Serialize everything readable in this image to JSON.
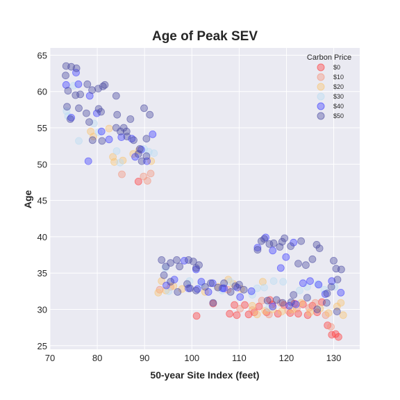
{
  "chart_data": {
    "type": "scatter",
    "title": "Age of Peak SEV",
    "xlabel": "50-year Site Index (feet)",
    "ylabel": "Age",
    "xlim": [
      70,
      135.5
    ],
    "ylim": [
      24.5,
      66
    ],
    "xticks": [
      70,
      80,
      90,
      100,
      110,
      120,
      130
    ],
    "yticks": [
      25,
      30,
      35,
      40,
      45,
      50,
      55,
      60,
      65
    ],
    "grid": true,
    "background": "#eaeaf2",
    "legend": {
      "title": "Carbon Price",
      "placement": "top-right"
    },
    "series": [
      {
        "name": "$0",
        "color": "#ff3b3b",
        "points": [
          [
            88.7,
            47.6
          ],
          [
            101.0,
            29.1
          ],
          [
            104.5,
            30.8
          ],
          [
            108.0,
            29.4
          ],
          [
            109.0,
            30.6
          ],
          [
            109.5,
            29.2
          ],
          [
            111.2,
            30.6
          ],
          [
            112.0,
            29.3
          ],
          [
            114.2,
            30.4
          ],
          [
            115.8,
            29.6
          ],
          [
            117.0,
            30.7
          ],
          [
            118.2,
            29.4
          ],
          [
            119.5,
            30.6
          ],
          [
            120.8,
            29.5
          ],
          [
            121.7,
            30.8
          ],
          [
            122.5,
            29.4
          ],
          [
            123.5,
            30.7
          ],
          [
            124.5,
            29.2
          ],
          [
            125.5,
            30.5
          ],
          [
            126.5,
            29.6
          ],
          [
            127.5,
            31.0
          ],
          [
            128.7,
            27.8
          ],
          [
            129.6,
            26.5
          ],
          [
            130.4,
            26.6
          ],
          [
            131.0,
            26.2
          ],
          [
            116.5,
            31.3
          ],
          [
            113.2,
            29.6
          ]
        ]
      },
      {
        "name": "$10",
        "color": "#f4937a",
        "points": [
          [
            85.2,
            48.6
          ],
          [
            89.8,
            48.3
          ],
          [
            91.3,
            48.7
          ],
          [
            90.6,
            47.7
          ],
          [
            93.2,
            32.7
          ],
          [
            95.5,
            33.1
          ],
          [
            107.6,
            32.7
          ],
          [
            110.2,
            30.1
          ],
          [
            112.8,
            29.9
          ],
          [
            114.8,
            31.2
          ],
          [
            116.3,
            29.3
          ],
          [
            118.8,
            30.9
          ],
          [
            120.4,
            29.8
          ],
          [
            122.2,
            30.1
          ],
          [
            124.8,
            30.2
          ],
          [
            126.1,
            30.9
          ],
          [
            128.3,
            29.2
          ],
          [
            129.4,
            27.6
          ]
        ]
      },
      {
        "name": "$20",
        "color": "#f9c36d",
        "points": [
          [
            78.6,
            54.5
          ],
          [
            79.2,
            53.8
          ],
          [
            82.5,
            54.9
          ],
          [
            83.3,
            51.0
          ],
          [
            83.6,
            50.3
          ],
          [
            85.4,
            50.5
          ],
          [
            87.6,
            51.4
          ],
          [
            88.8,
            51.9
          ],
          [
            91.4,
            50.4
          ],
          [
            92.9,
            32.3
          ],
          [
            93.6,
            33.9
          ],
          [
            94.5,
            32.6
          ],
          [
            96.1,
            33.2
          ],
          [
            97.9,
            32.8
          ],
          [
            102.8,
            32.4
          ],
          [
            105.6,
            33.1
          ],
          [
            107.7,
            34.1
          ],
          [
            108.8,
            33.5
          ],
          [
            110.4,
            32.8
          ],
          [
            112.8,
            30.5
          ],
          [
            113.8,
            29.3
          ],
          [
            115.0,
            33.8
          ],
          [
            115.5,
            29.8
          ],
          [
            117.1,
            30.0
          ],
          [
            119.0,
            29.7
          ],
          [
            121.3,
            30.0
          ],
          [
            123.1,
            30.9
          ],
          [
            125.0,
            29.6
          ],
          [
            127.1,
            30.1
          ],
          [
            128.9,
            29.5
          ],
          [
            130.7,
            30.4
          ],
          [
            131.5,
            30.9
          ],
          [
            132.0,
            29.2
          ]
        ]
      },
      {
        "name": "$30",
        "color": "#b9dcf2",
        "points": [
          [
            73.5,
            57.3
          ],
          [
            73.8,
            56.6
          ],
          [
            75.0,
            60.8
          ],
          [
            76.1,
            53.2
          ],
          [
            79.3,
            55.6
          ],
          [
            80.3,
            54.4
          ],
          [
            84.1,
            51.8
          ],
          [
            84.8,
            50.2
          ],
          [
            89.9,
            52.1
          ],
          [
            90.9,
            51.7
          ],
          [
            92.0,
            51.5
          ],
          [
            94.4,
            35.7
          ],
          [
            95.1,
            32.5
          ],
          [
            99.5,
            33.9
          ],
          [
            102.0,
            33.5
          ],
          [
            106.4,
            32.6
          ],
          [
            108.1,
            33.8
          ],
          [
            112.8,
            32.0
          ],
          [
            113.8,
            32.9
          ],
          [
            115.3,
            33.0
          ],
          [
            116.3,
            30.2
          ],
          [
            117.3,
            33.9
          ],
          [
            119.3,
            33.8
          ],
          [
            122.8,
            32.6
          ],
          [
            124.4,
            33.1
          ],
          [
            126.6,
            33.5
          ],
          [
            128.0,
            32.7
          ],
          [
            130.2,
            33.1
          ]
        ]
      },
      {
        "name": "$40",
        "color": "#3b3bff",
        "points": [
          [
            73.4,
            60.9
          ],
          [
            74.5,
            56.4
          ],
          [
            75.5,
            62.6
          ],
          [
            76.0,
            61.0
          ],
          [
            78.1,
            50.4
          ],
          [
            78.4,
            59.4
          ],
          [
            79.9,
            57.0
          ],
          [
            80.9,
            54.5
          ],
          [
            82.5,
            53.4
          ],
          [
            85.1,
            53.7
          ],
          [
            87.3,
            53.5
          ],
          [
            88.0,
            51.0
          ],
          [
            89.3,
            52.0
          ],
          [
            90.5,
            50.4
          ],
          [
            91.7,
            54.1
          ],
          [
            94.6,
            33.3
          ],
          [
            96.3,
            34.1
          ],
          [
            98.4,
            36.7
          ],
          [
            99.3,
            32.9
          ],
          [
            100.9,
            35.5
          ],
          [
            102.0,
            33.8
          ],
          [
            103.5,
            32.4
          ],
          [
            104.4,
            33.6
          ],
          [
            106.8,
            32.9
          ],
          [
            109.6,
            33.0
          ],
          [
            110.2,
            31.7
          ],
          [
            112.6,
            32.5
          ],
          [
            113.9,
            38.5
          ],
          [
            115.6,
            39.9
          ],
          [
            117.1,
            38.1
          ],
          [
            118.8,
            35.7
          ],
          [
            119.9,
            37.2
          ],
          [
            121.5,
            39.2
          ],
          [
            123.5,
            33.6
          ],
          [
            125.0,
            33.9
          ],
          [
            126.8,
            33.4
          ],
          [
            128.2,
            32.1
          ],
          [
            129.6,
            33.9
          ],
          [
            131.5,
            32.3
          ],
          [
            120.6,
            30.5
          ],
          [
            122.0,
            30.7
          ],
          [
            117.1,
            30.4
          ],
          [
            106.5,
            32.9
          ],
          [
            101.2,
            32.8
          ]
        ]
      },
      {
        "name": "$50",
        "color": "#4a4aa0",
        "points": [
          [
            73.4,
            63.5
          ],
          [
            73.3,
            62.2
          ],
          [
            74.5,
            63.4
          ],
          [
            75.6,
            63.2
          ],
          [
            73.8,
            60.1
          ],
          [
            75.4,
            59.5
          ],
          [
            76.4,
            59.6
          ],
          [
            77.9,
            61.0
          ],
          [
            78.9,
            60.2
          ],
          [
            80.2,
            60.4
          ],
          [
            81.2,
            60.7
          ],
          [
            81.6,
            60.9
          ],
          [
            84.0,
            59.4
          ],
          [
            73.6,
            57.9
          ],
          [
            74.3,
            56.2
          ],
          [
            76.1,
            57.7
          ],
          [
            77.7,
            57.0
          ],
          [
            78.3,
            55.8
          ],
          [
            80.3,
            57.6
          ],
          [
            80.8,
            57.2
          ],
          [
            84.2,
            56.8
          ],
          [
            87.0,
            56.2
          ],
          [
            89.9,
            57.7
          ],
          [
            91.1,
            56.8
          ],
          [
            79.0,
            53.3
          ],
          [
            81.0,
            53.2
          ],
          [
            84.0,
            55.0
          ],
          [
            84.9,
            54.5
          ],
          [
            85.6,
            55.0
          ],
          [
            86.2,
            54.5
          ],
          [
            86.3,
            53.8
          ],
          [
            87.7,
            53.3
          ],
          [
            89.0,
            52.1
          ],
          [
            88.7,
            51.4
          ],
          [
            89.4,
            50.4
          ],
          [
            90.4,
            51.1
          ],
          [
            90.4,
            53.5
          ],
          [
            93.6,
            36.8
          ],
          [
            94.5,
            35.9
          ],
          [
            95.5,
            36.4
          ],
          [
            96.8,
            36.8
          ],
          [
            97.4,
            35.9
          ],
          [
            99.3,
            36.8
          ],
          [
            100.3,
            36.6
          ],
          [
            100.9,
            35.7
          ],
          [
            101.5,
            36.1
          ],
          [
            94.1,
            34.7
          ],
          [
            95.5,
            33.8
          ],
          [
            97.0,
            32.4
          ],
          [
            99.0,
            33.5
          ],
          [
            99.6,
            32.9
          ],
          [
            100.9,
            32.6
          ],
          [
            102.8,
            33.1
          ],
          [
            104.0,
            33.6
          ],
          [
            105.5,
            33.0
          ],
          [
            106.8,
            33.6
          ],
          [
            108.2,
            32.4
          ],
          [
            109.2,
            33.2
          ],
          [
            110.0,
            33.4
          ],
          [
            111.0,
            32.7
          ],
          [
            104.5,
            30.9
          ],
          [
            113.9,
            38.2
          ],
          [
            114.7,
            39.4
          ],
          [
            115.3,
            39.7
          ],
          [
            116.4,
            39.0
          ],
          [
            117.3,
            39.1
          ],
          [
            118.6,
            38.6
          ],
          [
            119.1,
            39.3
          ],
          [
            119.6,
            39.8
          ],
          [
            120.9,
            38.7
          ],
          [
            123.1,
            39.4
          ],
          [
            126.4,
            38.9
          ],
          [
            127.0,
            38.4
          ],
          [
            125.5,
            36.9
          ],
          [
            122.5,
            36.3
          ],
          [
            124.1,
            36.1
          ],
          [
            130.0,
            36.7
          ],
          [
            130.5,
            35.6
          ],
          [
            131.6,
            35.5
          ],
          [
            129.5,
            33.1
          ],
          [
            128.6,
            32.2
          ],
          [
            130.8,
            34.1
          ],
          [
            121.5,
            32.0
          ],
          [
            124.4,
            31.6
          ],
          [
            126.5,
            30.0
          ],
          [
            128.5,
            30.9
          ],
          [
            130.7,
            29.7
          ],
          [
            116.0,
            31.2
          ],
          [
            117.9,
            31.3
          ],
          [
            119.2,
            30.9
          ],
          [
            121.0,
            31.0
          ]
        ]
      }
    ]
  }
}
